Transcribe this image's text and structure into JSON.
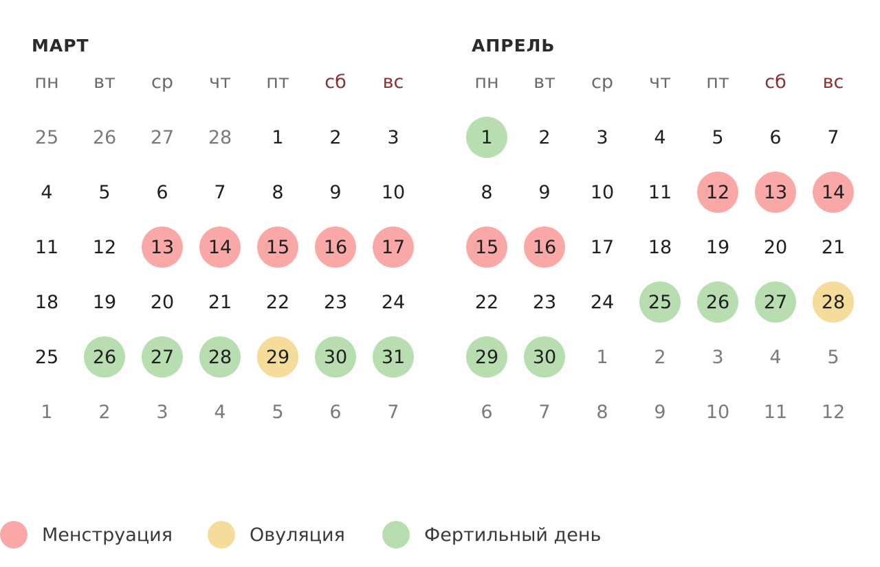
{
  "weekdays": [
    {
      "label": "пн",
      "weekend": false
    },
    {
      "label": "вт",
      "weekend": false
    },
    {
      "label": "ср",
      "weekend": false
    },
    {
      "label": "чт",
      "weekend": false
    },
    {
      "label": "пт",
      "weekend": false
    },
    {
      "label": "сб",
      "weekend": true
    },
    {
      "label": "вс",
      "weekend": true
    }
  ],
  "colors": {
    "menstruation": "#f9a7a7",
    "ovulation": "#f6dc9b",
    "fertile": "#b8ddb0",
    "weekend_text": "#8c2f2f",
    "other_month_text": "#7a7a7a"
  },
  "months": [
    {
      "title": "МАРТ",
      "days": [
        {
          "n": "25",
          "other": true
        },
        {
          "n": "26",
          "other": true
        },
        {
          "n": "27",
          "other": true
        },
        {
          "n": "28",
          "other": true
        },
        {
          "n": "1"
        },
        {
          "n": "2"
        },
        {
          "n": "3"
        },
        {
          "n": "4"
        },
        {
          "n": "5"
        },
        {
          "n": "6"
        },
        {
          "n": "7"
        },
        {
          "n": "8"
        },
        {
          "n": "9"
        },
        {
          "n": "10"
        },
        {
          "n": "11"
        },
        {
          "n": "12"
        },
        {
          "n": "13",
          "mark": "menstruation"
        },
        {
          "n": "14",
          "mark": "menstruation"
        },
        {
          "n": "15",
          "mark": "menstruation"
        },
        {
          "n": "16",
          "mark": "menstruation"
        },
        {
          "n": "17",
          "mark": "menstruation"
        },
        {
          "n": "18"
        },
        {
          "n": "19"
        },
        {
          "n": "20"
        },
        {
          "n": "21"
        },
        {
          "n": "22"
        },
        {
          "n": "23"
        },
        {
          "n": "24"
        },
        {
          "n": "25"
        },
        {
          "n": "26",
          "mark": "fertile"
        },
        {
          "n": "27",
          "mark": "fertile"
        },
        {
          "n": "28",
          "mark": "fertile"
        },
        {
          "n": "29",
          "mark": "ovulation"
        },
        {
          "n": "30",
          "mark": "fertile"
        },
        {
          "n": "31",
          "mark": "fertile"
        },
        {
          "n": "1",
          "other": true
        },
        {
          "n": "2",
          "other": true
        },
        {
          "n": "3",
          "other": true
        },
        {
          "n": "4",
          "other": true
        },
        {
          "n": "5",
          "other": true
        },
        {
          "n": "6",
          "other": true
        },
        {
          "n": "7",
          "other": true
        }
      ]
    },
    {
      "title": "АПРЕЛЬ",
      "days": [
        {
          "n": "1",
          "mark": "fertile"
        },
        {
          "n": "2"
        },
        {
          "n": "3"
        },
        {
          "n": "4"
        },
        {
          "n": "5"
        },
        {
          "n": "6"
        },
        {
          "n": "7"
        },
        {
          "n": "8"
        },
        {
          "n": "9"
        },
        {
          "n": "10"
        },
        {
          "n": "11"
        },
        {
          "n": "12",
          "mark": "menstruation"
        },
        {
          "n": "13",
          "mark": "menstruation"
        },
        {
          "n": "14",
          "mark": "menstruation"
        },
        {
          "n": "15",
          "mark": "menstruation"
        },
        {
          "n": "16",
          "mark": "menstruation"
        },
        {
          "n": "17"
        },
        {
          "n": "18"
        },
        {
          "n": "19"
        },
        {
          "n": "20"
        },
        {
          "n": "21"
        },
        {
          "n": "22"
        },
        {
          "n": "23"
        },
        {
          "n": "24"
        },
        {
          "n": "25",
          "mark": "fertile"
        },
        {
          "n": "26",
          "mark": "fertile"
        },
        {
          "n": "27",
          "mark": "fertile"
        },
        {
          "n": "28",
          "mark": "ovulation"
        },
        {
          "n": "29",
          "mark": "fertile"
        },
        {
          "n": "30",
          "mark": "fertile"
        },
        {
          "n": "1",
          "other": true
        },
        {
          "n": "2",
          "other": true
        },
        {
          "n": "3",
          "other": true
        },
        {
          "n": "4",
          "other": true
        },
        {
          "n": "5",
          "other": true
        },
        {
          "n": "6",
          "other": true
        },
        {
          "n": "7",
          "other": true
        },
        {
          "n": "8",
          "other": true
        },
        {
          "n": "9",
          "other": true
        },
        {
          "n": "10",
          "other": true
        },
        {
          "n": "11",
          "other": true
        },
        {
          "n": "12",
          "other": true
        }
      ]
    }
  ],
  "legend": {
    "menstruation": "Менструация",
    "ovulation": "Овуляция",
    "fertile": "Фертильный день"
  }
}
